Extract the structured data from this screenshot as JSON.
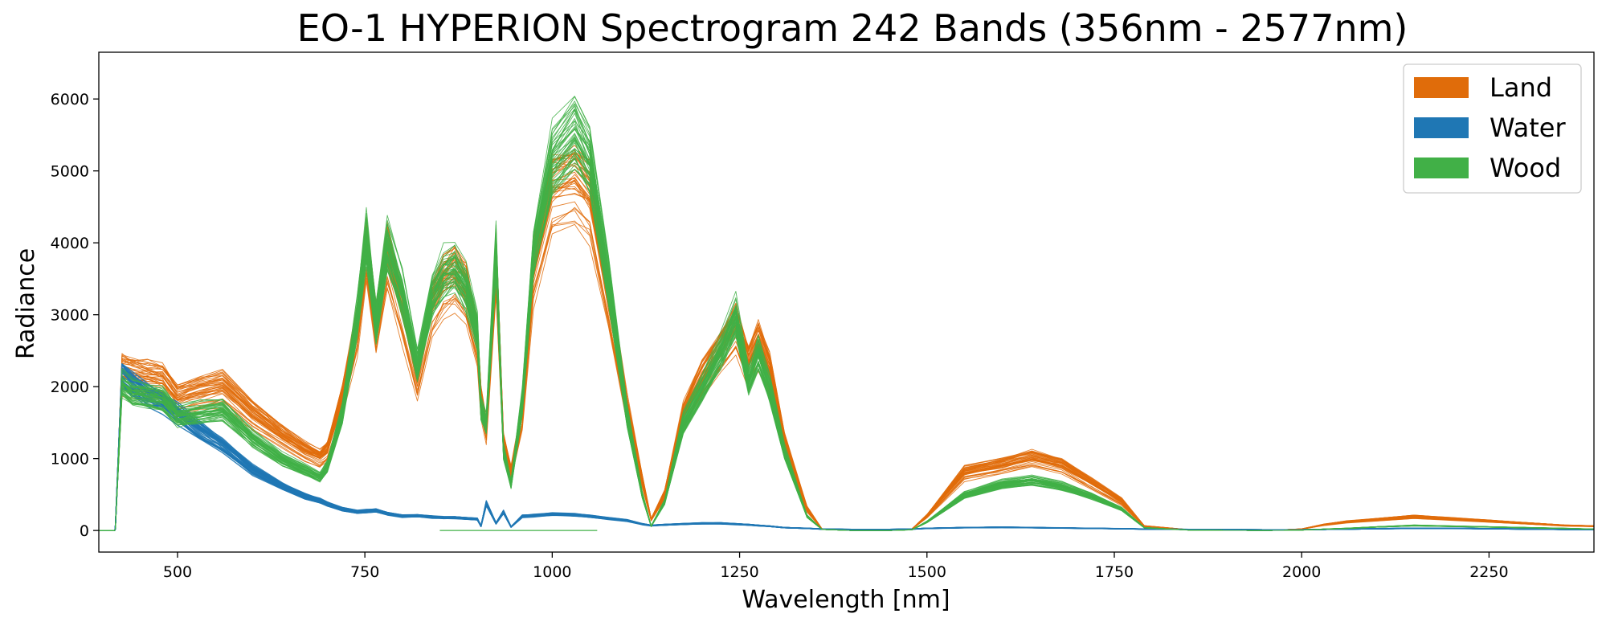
{
  "chart_data": {
    "type": "line",
    "title": "EO-1 HYPERION Spectrogram 242 Bands (356nm - 2577nm)",
    "xlabel": "Wavelength [nm]",
    "ylabel": "Radiance",
    "xlim": [
      395,
      2390
    ],
    "ylim": [
      -300,
      6650
    ],
    "xticks": [
      500,
      750,
      1000,
      1250,
      1500,
      1750,
      2000,
      2250
    ],
    "yticks": [
      0,
      1000,
      2000,
      3000,
      4000,
      5000,
      6000
    ],
    "grid": false,
    "legend_position": "top-right",
    "legend": [
      {
        "label": "Land",
        "color": "#e06c0a"
      },
      {
        "label": "Water",
        "color": "#1f77b4"
      },
      {
        "label": "Wood",
        "color": "#41b047"
      }
    ],
    "series": [
      {
        "color": "#e06c0a",
        "lines": 40,
        "spread": 0.14,
        "x": [
          395,
          416,
          417,
          426,
          440,
          460,
          480,
          500,
          530,
          560,
          600,
          640,
          670,
          690,
          700,
          720,
          740,
          752,
          765,
          780,
          800,
          820,
          840,
          855,
          870,
          885,
          900,
          905,
          912,
          925,
          935,
          945,
          960,
          975,
          1000,
          1030,
          1050,
          1075,
          1100,
          1120,
          1132,
          1150,
          1175,
          1200,
          1225,
          1245,
          1262,
          1275,
          1290,
          1310,
          1340,
          1360,
          1400,
          1450,
          1480,
          1500,
          1550,
          1600,
          1640,
          1680,
          1720,
          1760,
          1790,
          1850,
          1950,
          2000,
          2030,
          2060,
          2100,
          2150,
          2200,
          2250,
          2300,
          2350,
          2390
        ],
        "y": [
          0,
          0,
          20,
          2180,
          2130,
          2100,
          2070,
          1800,
          1900,
          1980,
          1600,
          1300,
          1100,
          1000,
          1100,
          1800,
          2800,
          3900,
          2800,
          3800,
          3000,
          2100,
          3100,
          3400,
          3500,
          3300,
          2600,
          1800,
          1400,
          3700,
          1200,
          800,
          1600,
          3600,
          4700,
          4850,
          4600,
          3200,
          1700,
          700,
          150,
          500,
          1600,
          2100,
          2500,
          2800,
          2300,
          2600,
          2200,
          1200,
          300,
          20,
          0,
          0,
          20,
          200,
          800,
          900,
          1000,
          900,
          650,
          400,
          60,
          10,
          0,
          20,
          80,
          120,
          150,
          190,
          160,
          130,
          100,
          70,
          60
        ]
      },
      {
        "color": "#1f77b4",
        "lines": 30,
        "spread": 0.1,
        "x": [
          395,
          416,
          417,
          426,
          440,
          460,
          480,
          500,
          530,
          560,
          600,
          640,
          670,
          690,
          700,
          720,
          740,
          752,
          765,
          780,
          800,
          820,
          840,
          855,
          870,
          885,
          900,
          905,
          912,
          925,
          935,
          945,
          960,
          975,
          1000,
          1030,
          1050,
          1075,
          1100,
          1120,
          1132,
          1150,
          1175,
          1200,
          1225,
          1245,
          1262,
          1275,
          1290,
          1310,
          1340,
          1360,
          1400,
          1450,
          1480,
          1500,
          1550,
          1600,
          1640,
          1680,
          1720,
          1760,
          1790,
          1850,
          1950,
          2000,
          2030,
          2060,
          2100,
          2150,
          2200,
          2250,
          2300,
          2350,
          2390
        ],
        "y": [
          0,
          0,
          20,
          2200,
          2050,
          1900,
          1800,
          1650,
          1400,
          1200,
          850,
          620,
          480,
          420,
          370,
          300,
          260,
          270,
          280,
          240,
          200,
          210,
          190,
          180,
          180,
          170,
          160,
          60,
          380,
          100,
          260,
          50,
          200,
          210,
          230,
          220,
          200,
          170,
          140,
          90,
          70,
          80,
          90,
          100,
          100,
          90,
          80,
          70,
          60,
          40,
          30,
          20,
          15,
          15,
          20,
          30,
          40,
          45,
          40,
          35,
          30,
          25,
          20,
          15,
          10,
          10,
          15,
          20,
          25,
          30,
          30,
          25,
          20,
          15,
          10
        ]
      },
      {
        "color": "#41b047",
        "lines": 45,
        "spread": 0.09,
        "x": [
          395,
          416,
          417,
          426,
          440,
          460,
          480,
          500,
          530,
          560,
          600,
          640,
          670,
          690,
          700,
          720,
          740,
          752,
          765,
          780,
          800,
          820,
          840,
          855,
          870,
          885,
          900,
          905,
          912,
          925,
          935,
          945,
          960,
          975,
          1000,
          1030,
          1050,
          1075,
          1100,
          1120,
          1132,
          1150,
          1175,
          1200,
          1225,
          1245,
          1262,
          1275,
          1290,
          1310,
          1340,
          1360,
          1400,
          1450,
          1480,
          1500,
          1550,
          1600,
          1640,
          1680,
          1720,
          1760,
          1790,
          1850,
          1950,
          2000,
          2030,
          2060,
          2100,
          2150,
          2200,
          2250,
          2300,
          2350,
          2390
        ],
        "y": [
          0,
          0,
          20,
          2050,
          1930,
          1900,
          1850,
          1600,
          1650,
          1700,
          1300,
          1000,
          850,
          750,
          900,
          1650,
          3000,
          4100,
          2900,
          4000,
          3300,
          2300,
          3300,
          3600,
          3700,
          3400,
          2800,
          1700,
          1500,
          3900,
          1100,
          650,
          1800,
          3900,
          5200,
          5600,
          5200,
          3500,
          1600,
          500,
          60,
          400,
          1500,
          2000,
          2500,
          3000,
          2100,
          2500,
          2000,
          1100,
          200,
          15,
          0,
          0,
          10,
          120,
          500,
          650,
          700,
          620,
          480,
          300,
          40,
          5,
          0,
          5,
          20,
          30,
          50,
          70,
          60,
          50,
          40,
          30,
          20
        ]
      }
    ],
    "extra_segments": [
      {
        "color": "#41b047",
        "x": [
          850,
          1060
        ],
        "y": [
          0,
          0
        ]
      }
    ]
  }
}
